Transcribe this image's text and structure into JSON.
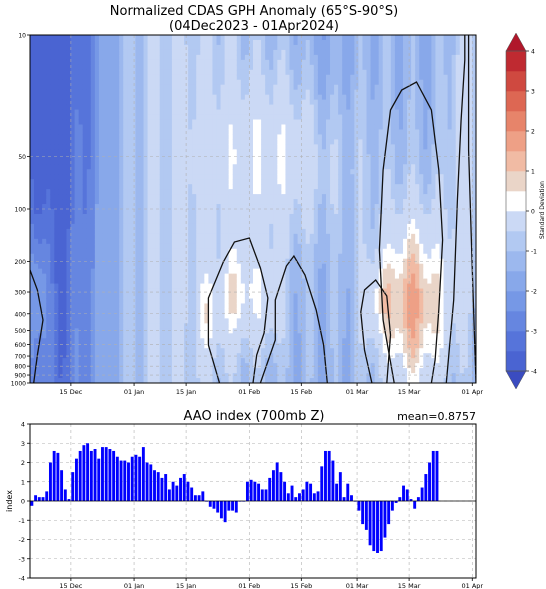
{
  "chart_data": [
    {
      "type": "heatmap",
      "title": "Normalized CDAS GPH Anomaly (65°S-90°S)",
      "subtitle": "(04Dec2023 - 01Apr2024)",
      "xlabel": "",
      "ylabel": "",
      "x_ticks": [
        "15 Dec",
        "01 Jan",
        "15 Jan",
        "01 Feb",
        "15 Feb",
        "01 Mar",
        "15 Mar",
        "01 Apr"
      ],
      "x_tick_days": [
        11,
        28,
        42,
        59,
        73,
        88,
        102,
        119
      ],
      "xlim_days": [
        0,
        120
      ],
      "y_scale": "log",
      "y_ticks": [
        10,
        50,
        100,
        200,
        300,
        400,
        500,
        600,
        700,
        800,
        900,
        1000
      ],
      "ylim_hPa": [
        1000,
        10
      ],
      "grid": true,
      "colorbar": {
        "label": "Standard Deviation",
        "ticks": [
          4,
          3,
          2,
          1,
          0,
          -1,
          -2,
          -3,
          -4
        ],
        "levels": [
          -4,
          -3.5,
          -3,
          -2.5,
          -2,
          -1.5,
          -1,
          -0.5,
          0.5,
          1,
          1.5,
          2,
          2.5,
          3,
          3.5,
          4
        ],
        "colors": [
          "#4a64d2",
          "#5674da",
          "#6686e0",
          "#7698e6",
          "#88a8ea",
          "#9cb8ee",
          "#b2c9f2",
          "#cbd9f5",
          "#ffffff",
          "#ead5c8",
          "#f1bba4",
          "#eea086",
          "#e7846a",
          "#dd6753",
          "#cf4940",
          "#bf2a31"
        ],
        "extend": "both"
      }
    },
    {
      "type": "bar",
      "title": "AAO index (700mb Z)",
      "annotation": "mean=0.8757",
      "ylabel": "index",
      "ylim": [
        -4,
        4
      ],
      "y_ticks": [
        4,
        3,
        2,
        1,
        0,
        -1,
        -2,
        -3,
        -4
      ],
      "x_ticks": [
        "15 Dec",
        "01 Jan",
        "15 Jan",
        "01 Feb",
        "15 Feb",
        "01 Mar",
        "15 Mar",
        "01 Apr"
      ],
      "x_tick_days": [
        11,
        28,
        42,
        59,
        73,
        88,
        102,
        119
      ],
      "grid": true,
      "bar_color": "#0000ff",
      "start_date": "04Dec2023",
      "values": [
        -0.25,
        0.3,
        0.2,
        0.2,
        0.5,
        2.0,
        2.6,
        2.5,
        1.6,
        0.6,
        0.1,
        1.5,
        2.2,
        2.6,
        2.9,
        3.0,
        2.6,
        2.7,
        2.2,
        2.8,
        2.8,
        2.7,
        2.6,
        2.3,
        2.1,
        2.1,
        2.0,
        2.3,
        2.4,
        2.3,
        2.8,
        2.0,
        1.9,
        1.6,
        1.5,
        1.2,
        1.4,
        0.6,
        1.0,
        0.8,
        1.2,
        1.4,
        1.0,
        0.7,
        0.3,
        0.3,
        0.5,
        0.0,
        -0.3,
        -0.4,
        -0.6,
        -0.9,
        -1.1,
        -0.5,
        -0.5,
        -0.6,
        0.0,
        0.0,
        1.0,
        1.1,
        1.0,
        0.9,
        0.6,
        0.6,
        1.2,
        1.6,
        2.0,
        1.5,
        1.0,
        0.4,
        0.8,
        0.2,
        0.4,
        0.6,
        1.0,
        0.9,
        0.4,
        0.5,
        1.8,
        2.6,
        2.6,
        2.1,
        0.9,
        1.5,
        0.2,
        0.9,
        0.3,
        0.0,
        -0.5,
        -1.2,
        -1.5,
        -2.3,
        -2.6,
        -2.7,
        -2.6,
        -1.9,
        -1.2,
        -0.5,
        -0.1,
        0.2,
        0.8,
        0.6,
        0.1,
        -0.4,
        0.2,
        0.7,
        1.4,
        2.0,
        2.6,
        2.6
      ]
    }
  ]
}
